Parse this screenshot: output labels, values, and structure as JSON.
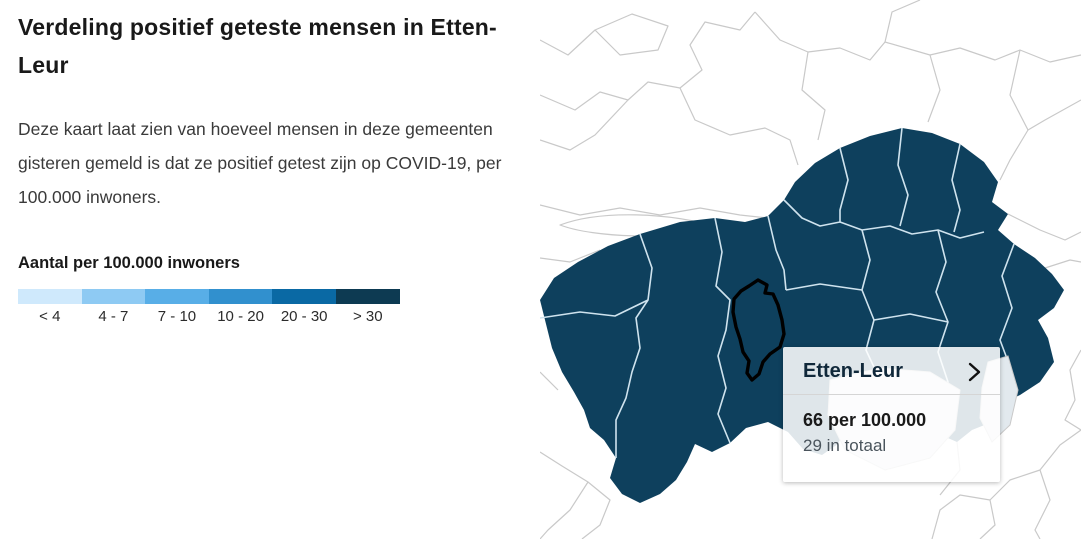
{
  "header": {
    "title": "Verdeling positief geteste mensen in Etten-Leur",
    "description": "Deze kaart laat zien van hoeveel mensen in deze gemeenten gisteren gemeld is dat ze positief getest zijn op COVID-19, per 100.000 inwoners."
  },
  "legend": {
    "title": "Aantal per 100.000 inwoners",
    "bins": [
      {
        "label": "< 4",
        "color": "#cfe9fc"
      },
      {
        "label": "4 - 7",
        "color": "#8ecaf3"
      },
      {
        "label": "7 - 10",
        "color": "#58aee7"
      },
      {
        "label": "10 - 20",
        "color": "#3190ce"
      },
      {
        "label": "20 - 30",
        "color": "#0a69a4"
      },
      {
        "label": "> 30",
        "color": "#0d3a52"
      }
    ]
  },
  "map": {
    "region_fill": "#0e405d",
    "region_border": "#cfe3ee",
    "neutral_border": "#c9c9c9",
    "highlight_outline": "#000000",
    "highlighted_region": "Etten-Leur"
  },
  "tooltip": {
    "title": "Etten-Leur",
    "value": "66 per 100.000",
    "total": "29 in totaal"
  },
  "chart_data": {
    "type": "choropleth_map",
    "title": "Verdeling positief geteste mensen in Etten-Leur",
    "legend_title": "Aantal per 100.000 inwoners",
    "bins": [
      "< 4",
      "4 - 7",
      "7 - 10",
      "10 - 20",
      "20 - 30",
      "> 30"
    ],
    "bin_colors": [
      "#cfe9fc",
      "#8ecaf3",
      "#58aee7",
      "#3190ce",
      "#0a69a4",
      "#0d3a52"
    ],
    "selected": {
      "name": "Etten-Leur",
      "per_100000": 66,
      "total": 29
    },
    "notes": "Surrounding West-Brabant municipalities rendered in the '> 30' colour; municipalities outside the region uncoloured (white with grey borders)."
  }
}
